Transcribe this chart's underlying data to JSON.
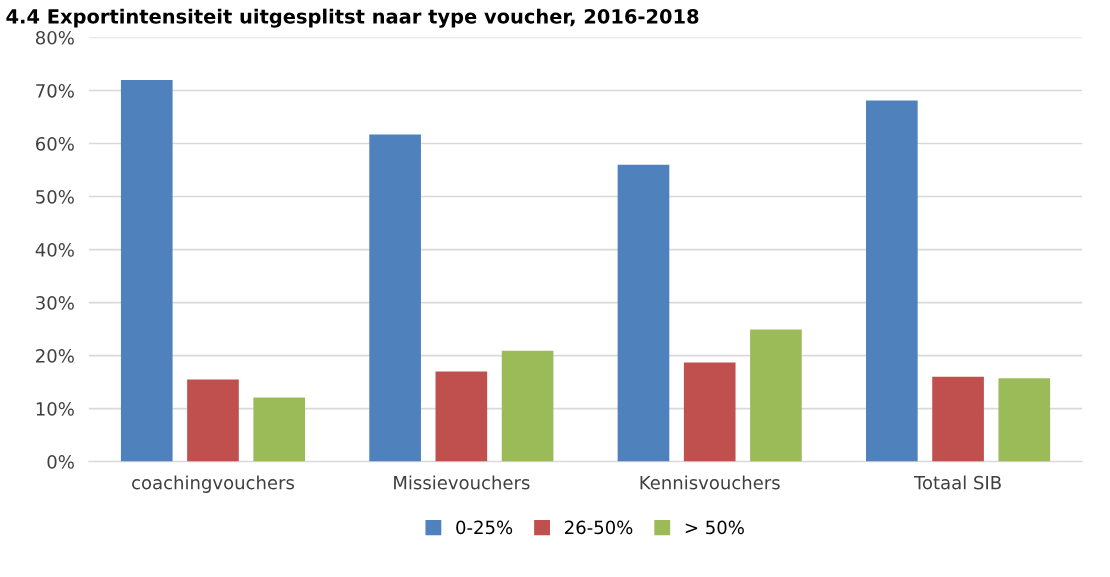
{
  "chart_data": {
    "type": "bar",
    "title": "4.4 Exportintensiteit uitgesplitst naar type voucher, 2016-2018",
    "categories": [
      "coachingvouchers",
      "Missievouchers",
      "Kennisvouchers",
      "Totaal SIB"
    ],
    "series": [
      {
        "name": "0-25%",
        "color": "#4f81bd",
        "values": [
          72,
          61.7,
          56,
          68.1
        ]
      },
      {
        "name": "26-50%",
        "color": "#c0504d",
        "values": [
          15.5,
          17,
          18.7,
          16
        ]
      },
      {
        "name": "> 50%",
        "color": "#9bbb59",
        "values": [
          12.1,
          20.9,
          24.9,
          15.7
        ]
      }
    ],
    "ylim": [
      0,
      80
    ],
    "yticks": [
      {
        "value": 0,
        "label": "0%"
      },
      {
        "value": 10,
        "label": "10%"
      },
      {
        "value": 20,
        "label": "20%"
      },
      {
        "value": 30,
        "label": "30%"
      },
      {
        "value": 40,
        "label": "40%"
      },
      {
        "value": 50,
        "label": "50%"
      },
      {
        "value": 60,
        "label": "60%"
      },
      {
        "value": 70,
        "label": "70%"
      },
      {
        "value": 80,
        "label": "80%"
      }
    ],
    "grid": "y",
    "legend": "bottom"
  }
}
